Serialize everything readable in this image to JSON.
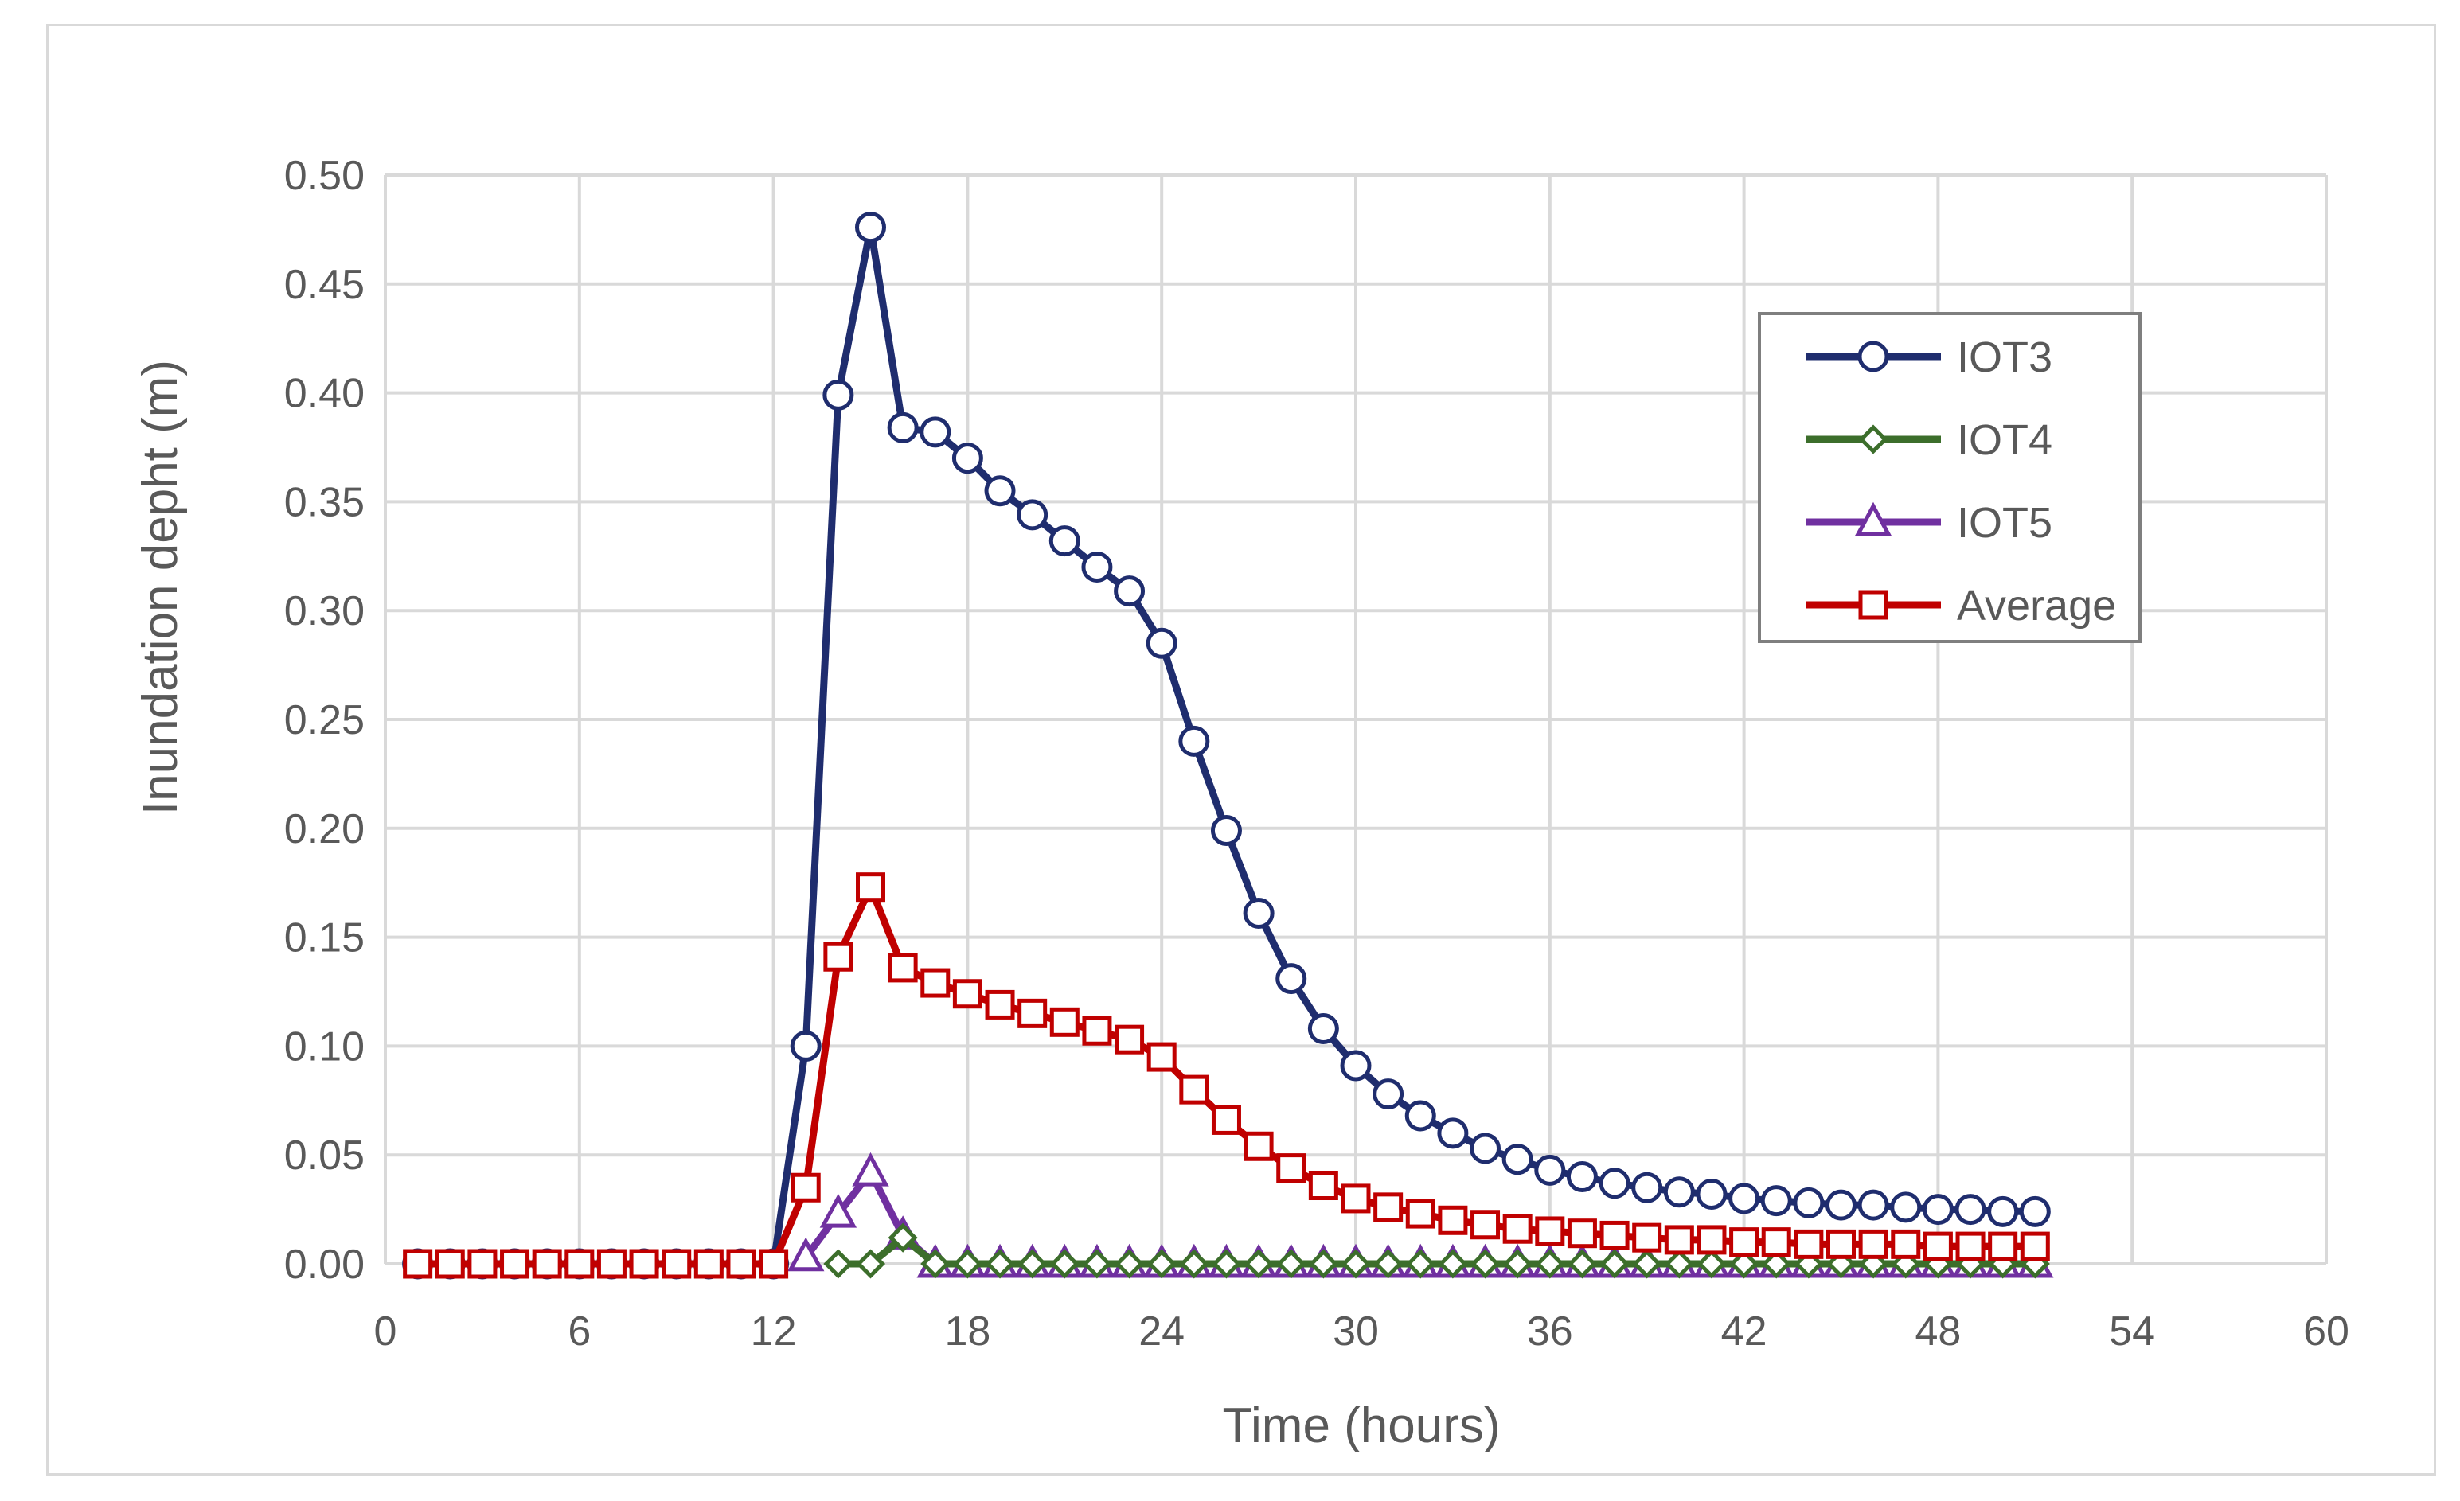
{
  "chart_data": {
    "type": "line",
    "title": "",
    "xlabel": "Time (hours)",
    "ylabel": "Inundation depht (m)",
    "xlim": [
      0,
      60
    ],
    "ylim": [
      0,
      0.5
    ],
    "xticks": [
      "0",
      "6",
      "12",
      "18",
      "24",
      "30",
      "36",
      "42",
      "48",
      "54",
      "60"
    ],
    "yticks": [
      "0.00",
      "0.05",
      "0.10",
      "0.15",
      "0.20",
      "0.25",
      "0.30",
      "0.35",
      "0.40",
      "0.45",
      "0.50"
    ],
    "grid": true,
    "legend_position": "top-right",
    "x": [
      1,
      2,
      3,
      4,
      5,
      6,
      7,
      8,
      9,
      10,
      11,
      12,
      13,
      14,
      15,
      16,
      17,
      18,
      19,
      20,
      21,
      22,
      23,
      24,
      25,
      26,
      27,
      28,
      29,
      30,
      31,
      32,
      33,
      34,
      35,
      36,
      37,
      38,
      39,
      40,
      41,
      42,
      43,
      44,
      45,
      46,
      47,
      48,
      49,
      50,
      51
    ],
    "series": [
      {
        "name": "IOT3",
        "color": "#1f2d6e",
        "marker": "circle",
        "values": [
          0,
          0,
          0,
          0,
          0,
          0,
          0,
          0,
          0,
          0,
          0,
          0,
          0.1,
          0.399,
          0.476,
          0.384,
          0.382,
          0.37,
          0.355,
          0.344,
          0.332,
          0.32,
          0.309,
          0.285,
          0.24,
          0.199,
          0.161,
          0.131,
          0.108,
          0.091,
          0.078,
          0.068,
          0.06,
          0.053,
          0.048,
          0.043,
          0.04,
          0.037,
          0.035,
          0.033,
          0.032,
          0.03,
          0.029,
          0.028,
          0.027,
          0.027,
          0.026,
          0.025,
          0.025,
          0.024,
          0.024
        ]
      },
      {
        "name": "IOT4",
        "color": "#3c6e2b",
        "marker": "diamond",
        "values": [
          null,
          null,
          null,
          null,
          null,
          null,
          null,
          null,
          null,
          null,
          null,
          null,
          null,
          0,
          0,
          0.012,
          0,
          0,
          0,
          0,
          0,
          0,
          0,
          0,
          0,
          0,
          0,
          0,
          0,
          0,
          0,
          0,
          0,
          0,
          0,
          0,
          0,
          0,
          0,
          0,
          0,
          0,
          0,
          0,
          0,
          0,
          0,
          0,
          0,
          0,
          0
        ]
      },
      {
        "name": "IOT5",
        "color": "#7030a0",
        "marker": "triangle",
        "values": [
          null,
          null,
          null,
          null,
          null,
          null,
          null,
          null,
          null,
          null,
          null,
          null,
          0.003,
          0.023,
          0.042,
          0.013,
          0,
          0,
          0,
          0,
          0,
          0,
          0,
          0,
          0,
          0,
          0,
          0,
          0,
          0,
          0,
          0,
          0,
          0,
          0,
          0,
          0,
          0,
          0,
          0,
          0,
          0,
          0,
          0,
          0,
          0,
          0,
          0,
          0,
          0,
          0
        ]
      },
      {
        "name": "Average",
        "color": "#c00000",
        "marker": "square",
        "values": [
          0,
          0,
          0,
          0,
          0,
          0,
          0,
          0,
          0,
          0,
          0,
          0,
          0.035,
          0.141,
          0.173,
          0.136,
          0.129,
          0.124,
          0.119,
          0.115,
          0.111,
          0.107,
          0.103,
          0.095,
          0.08,
          0.066,
          0.054,
          0.044,
          0.036,
          0.03,
          0.026,
          0.023,
          0.02,
          0.018,
          0.016,
          0.015,
          0.014,
          0.013,
          0.012,
          0.011,
          0.011,
          0.01,
          0.01,
          0.009,
          0.009,
          0.009,
          0.009,
          0.008,
          0.008,
          0.008,
          0.008
        ]
      }
    ]
  }
}
